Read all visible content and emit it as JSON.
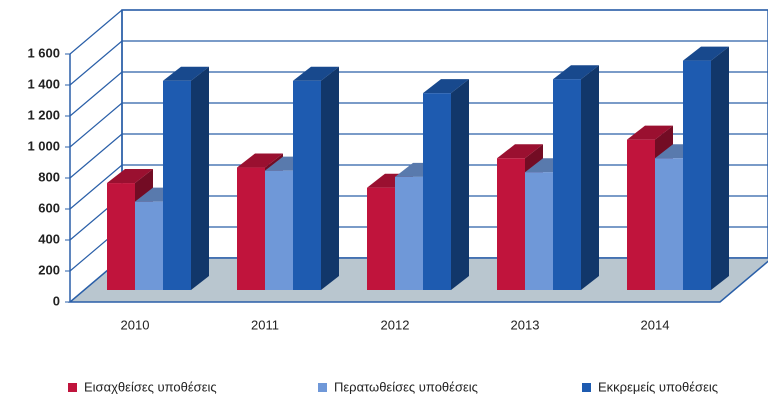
{
  "chart_data": {
    "type": "bar3d",
    "categories": [
      "2010",
      "2011",
      "2012",
      "2013",
      "2014"
    ],
    "series": [
      {
        "name": "Εισαχθείσες υποθέσεις",
        "color": "#c0143c",
        "values": [
          690,
          790,
          660,
          850,
          970
        ]
      },
      {
        "name": "Περατωθείσες υποθέσεις",
        "color": "#6f98d8",
        "values": [
          570,
          770,
          730,
          760,
          850
        ]
      },
      {
        "name": "Εκκρεμείς υποθέσεις",
        "color": "#1e5bb0",
        "values": [
          1350,
          1350,
          1270,
          1360,
          1480
        ]
      }
    ],
    "ylim": [
      0,
      1600
    ],
    "yticks": [
      0,
      200,
      400,
      600,
      800,
      {
        "value": 1000,
        "label": "1 000"
      },
      {
        "value": 1200,
        "label": "1 200"
      },
      {
        "value": 1400,
        "label": "1 400"
      },
      {
        "value": 1600,
        "label": "1 600"
      }
    ],
    "grid": true,
    "legend": "bottom"
  }
}
